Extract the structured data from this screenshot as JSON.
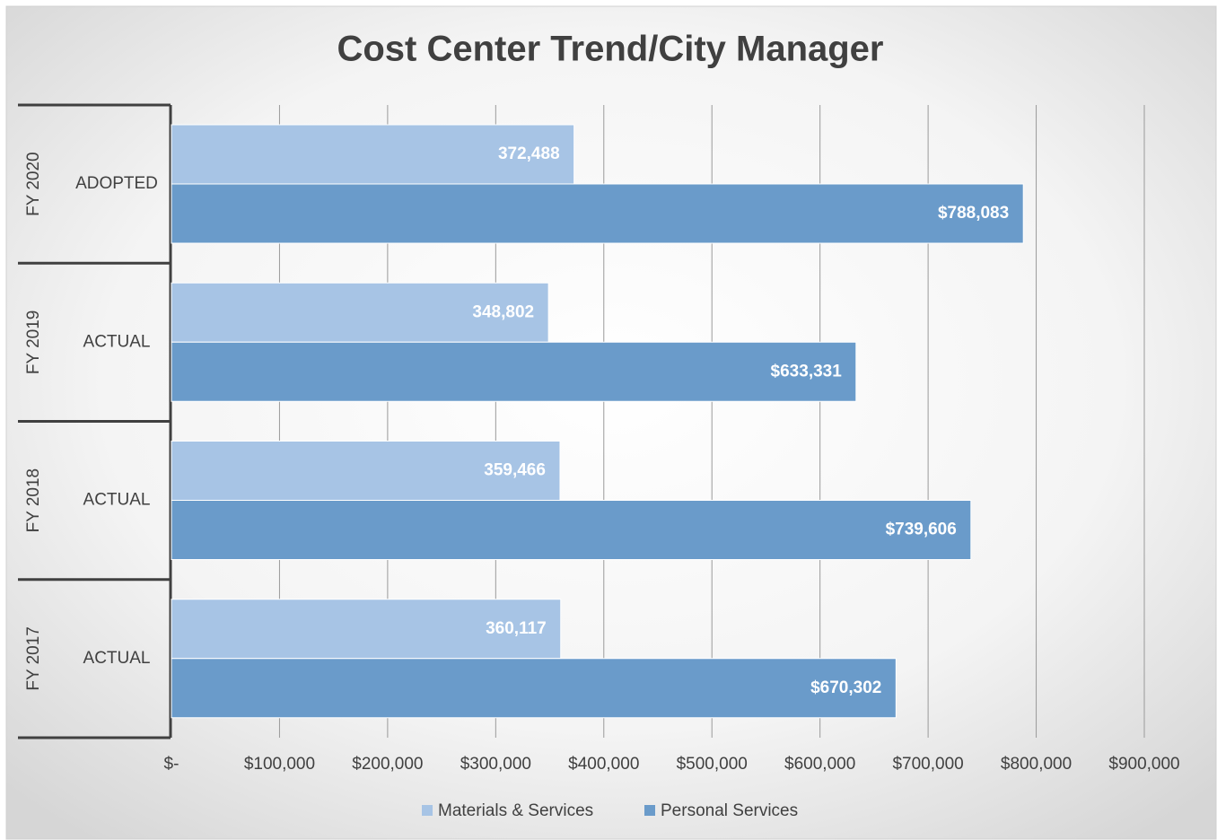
{
  "chart_data": {
    "type": "bar",
    "orientation": "horizontal",
    "title": "Cost Center Trend/City Manager",
    "category_groups": [
      "FY 2020",
      "FY 2019",
      "FY 2018",
      "FY 2017"
    ],
    "categories": [
      "ADOPTED",
      "ACTUAL",
      "ACTUAL",
      "ACTUAL"
    ],
    "series": [
      {
        "name": "Materials & Services",
        "color": "#a7c4e5",
        "values": [
          372488,
          348802,
          359466,
          360117
        ],
        "value_labels": [
          "372,488",
          "348,802",
          "359,466",
          "360,117"
        ]
      },
      {
        "name": "Personal Services",
        "color": "#6a9bca",
        "values": [
          788083,
          633331,
          739606,
          670302
        ],
        "value_labels": [
          "$788,083",
          "$633,331",
          "$739,606",
          "$670,302"
        ]
      }
    ],
    "xlim": [
      0,
      900000
    ],
    "xticks": [
      {
        "value": 0,
        "label": "$-"
      },
      {
        "value": 100000,
        "label": "$100,000"
      },
      {
        "value": 200000,
        "label": "$200,000"
      },
      {
        "value": 300000,
        "label": "$300,000"
      },
      {
        "value": 400000,
        "label": "$400,000"
      },
      {
        "value": 500000,
        "label": "$500,000"
      },
      {
        "value": 600000,
        "label": "$600,000"
      },
      {
        "value": 700000,
        "label": "$700,000"
      },
      {
        "value": 800000,
        "label": "$800,000"
      },
      {
        "value": 900000,
        "label": "$900,000"
      }
    ],
    "grid": true,
    "legend": "bottom"
  }
}
